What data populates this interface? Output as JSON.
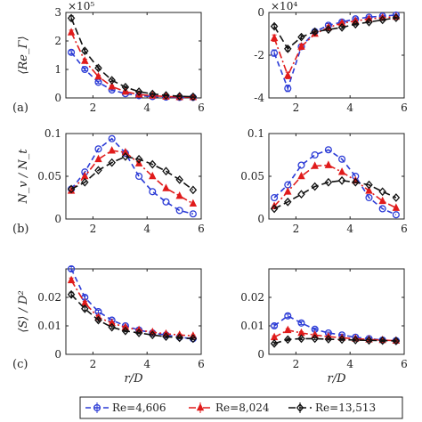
{
  "chart_data": [
    {
      "type": "line",
      "panel": "(a)",
      "column": "left",
      "ylabel": "⟨Re_Γ⟩",
      "xlabel": "",
      "exponent": "×10⁵",
      "xlim": [
        1,
        6
      ],
      "ylim": [
        0,
        3
      ],
      "scale": 100000,
      "xticks": [
        "2",
        "4",
        "6"
      ],
      "yticks": [
        "0",
        "1",
        "2",
        "3"
      ],
      "grid": false,
      "x": [
        1.2,
        1.7,
        2.2,
        2.7,
        3.2,
        3.7,
        4.2,
        4.7,
        5.2,
        5.7
      ],
      "series": [
        {
          "name": "Re=4,606",
          "values": [
            1.6,
            1.0,
            0.55,
            0.28,
            0.15,
            0.08,
            0.05,
            0.03,
            0.02,
            0.02
          ],
          "err": [
            0.06,
            0.05,
            0.04,
            0.03,
            0.02,
            0.02,
            0.02,
            0.02,
            0.02,
            0.02
          ]
        },
        {
          "name": "Re=8,024",
          "values": [
            2.3,
            1.3,
            0.75,
            0.4,
            0.22,
            0.12,
            0.08,
            0.05,
            0.03,
            0.03
          ],
          "err": [
            0.08,
            0.06,
            0.05,
            0.04,
            0.03,
            0.02,
            0.02,
            0.02,
            0.02,
            0.02
          ]
        },
        {
          "name": "Re=13,513",
          "values": [
            2.8,
            1.65,
            1.05,
            0.62,
            0.38,
            0.22,
            0.14,
            0.09,
            0.06,
            0.04
          ],
          "err": [
            0.08,
            0.06,
            0.05,
            0.04,
            0.03,
            0.02,
            0.02,
            0.02,
            0.02,
            0.02
          ]
        }
      ]
    },
    {
      "type": "line",
      "panel": "(a)",
      "column": "right",
      "ylabel": "",
      "xlabel": "",
      "exponent": "×10⁴",
      "xlim": [
        1,
        6
      ],
      "ylim": [
        -4,
        0
      ],
      "scale": 10000,
      "xticks": [
        "2",
        "4",
        "6"
      ],
      "yticks": [
        "-4",
        "-2",
        "0"
      ],
      "grid": false,
      "x": [
        1.2,
        1.7,
        2.2,
        2.7,
        3.2,
        3.7,
        4.2,
        4.7,
        5.2,
        5.7
      ],
      "series": [
        {
          "name": "Re=4,606",
          "values": [
            -1.9,
            -3.55,
            -1.6,
            -0.9,
            -0.6,
            -0.45,
            -0.3,
            -0.22,
            -0.17,
            -0.12
          ],
          "err": [
            0.15,
            0.15,
            0.12,
            0.1,
            0.08,
            0.06,
            0.05,
            0.04,
            0.04,
            0.03
          ]
        },
        {
          "name": "Re=8,024",
          "values": [
            -1.2,
            -2.95,
            -1.6,
            -1.0,
            -0.7,
            -0.5,
            -0.4,
            -0.3,
            -0.25,
            -0.2
          ],
          "err": [
            0.15,
            0.15,
            0.12,
            0.1,
            0.08,
            0.06,
            0.05,
            0.04,
            0.04,
            0.03
          ]
        },
        {
          "name": "Re=13,513",
          "values": [
            -0.65,
            -1.7,
            -1.15,
            -0.9,
            -0.8,
            -0.7,
            -0.55,
            -0.45,
            -0.35,
            -0.25
          ],
          "err": [
            0.08,
            0.1,
            0.08,
            0.07,
            0.06,
            0.05,
            0.04,
            0.04,
            0.03,
            0.03
          ]
        }
      ]
    },
    {
      "type": "line",
      "panel": "(b)",
      "column": "left",
      "ylabel": "N_v / N_t",
      "xlabel": "",
      "xlim": [
        1,
        6
      ],
      "ylim": [
        0,
        0.1
      ],
      "xticks": [
        "2",
        "4",
        "6"
      ],
      "yticks": [
        "0",
        "0.05",
        "0.1"
      ],
      "grid": false,
      "x": [
        1.2,
        1.7,
        2.2,
        2.7,
        3.2,
        3.7,
        4.2,
        4.7,
        5.2,
        5.7
      ],
      "series": [
        {
          "name": "Re=4,606",
          "values": [
            0.035,
            0.055,
            0.082,
            0.094,
            0.077,
            0.05,
            0.032,
            0.02,
            0.01,
            0.006
          ]
        },
        {
          "name": "Re=8,024",
          "values": [
            0.033,
            0.05,
            0.07,
            0.08,
            0.078,
            0.065,
            0.05,
            0.036,
            0.027,
            0.018
          ]
        },
        {
          "name": "Re=13,513",
          "values": [
            0.035,
            0.043,
            0.057,
            0.066,
            0.073,
            0.07,
            0.064,
            0.056,
            0.046,
            0.034
          ]
        }
      ]
    },
    {
      "type": "line",
      "panel": "(b)",
      "column": "right",
      "ylabel": "",
      "xlabel": "",
      "xlim": [
        1,
        6
      ],
      "ylim": [
        0,
        0.1
      ],
      "xticks": [
        "2",
        "4",
        "6"
      ],
      "yticks": [
        "0",
        "0.05",
        "0.1"
      ],
      "grid": false,
      "x": [
        1.2,
        1.7,
        2.2,
        2.7,
        3.2,
        3.7,
        4.2,
        4.7,
        5.2,
        5.7
      ],
      "series": [
        {
          "name": "Re=4,606",
          "values": [
            0.025,
            0.04,
            0.063,
            0.075,
            0.081,
            0.07,
            0.05,
            0.025,
            0.012,
            0.005
          ]
        },
        {
          "name": "Re=8,024",
          "values": [
            0.015,
            0.032,
            0.05,
            0.062,
            0.063,
            0.055,
            0.045,
            0.033,
            0.021,
            0.013
          ]
        },
        {
          "name": "Re=13,513",
          "values": [
            0.012,
            0.02,
            0.029,
            0.038,
            0.043,
            0.045,
            0.043,
            0.04,
            0.032,
            0.025
          ]
        }
      ]
    },
    {
      "type": "line",
      "panel": "(c)",
      "column": "left",
      "ylabel": "⟨S⟩ / D²",
      "xlabel": "r/D",
      "xlim": [
        1,
        6
      ],
      "ylim": [
        0,
        0.03
      ],
      "xticks": [
        "2",
        "4",
        "6"
      ],
      "yticks": [
        "0",
        "0.01",
        "0.02"
      ],
      "grid": false,
      "x": [
        1.2,
        1.7,
        2.2,
        2.7,
        3.2,
        3.7,
        4.2,
        4.7,
        5.2,
        5.7
      ],
      "series": [
        {
          "name": "Re=4,606",
          "values": [
            0.03,
            0.02,
            0.015,
            0.012,
            0.01,
            0.0085,
            0.0075,
            0.0068,
            0.006,
            0.0055
          ],
          "err": [
            0.0008,
            0.0006,
            0.0005,
            0.0004,
            0.0003,
            0.0003,
            0.0003,
            0.0003,
            0.0003,
            0.0003
          ]
        },
        {
          "name": "Re=8,024",
          "values": [
            0.026,
            0.018,
            0.013,
            0.011,
            0.0095,
            0.0085,
            0.0078,
            0.0072,
            0.0068,
            0.0065
          ],
          "err": [
            0.0008,
            0.0006,
            0.0005,
            0.0004,
            0.0003,
            0.0003,
            0.0003,
            0.0003,
            0.0003,
            0.0003
          ]
        },
        {
          "name": "Re=13,513",
          "values": [
            0.021,
            0.016,
            0.012,
            0.0095,
            0.0082,
            0.0075,
            0.0068,
            0.0062,
            0.0058,
            0.0055
          ],
          "err": [
            0.0008,
            0.0006,
            0.0005,
            0.0004,
            0.0003,
            0.0003,
            0.0003,
            0.0003,
            0.0003,
            0.0003
          ]
        }
      ]
    },
    {
      "type": "line",
      "panel": "(c)",
      "column": "right",
      "ylabel": "",
      "xlabel": "r/D",
      "xlim": [
        1,
        6
      ],
      "ylim": [
        0,
        0.03
      ],
      "xticks": [
        "2",
        "4",
        "6"
      ],
      "yticks": [
        "0",
        "0.01",
        "0.02"
      ],
      "grid": false,
      "x": [
        1.2,
        1.7,
        2.2,
        2.7,
        3.2,
        3.7,
        4.2,
        4.7,
        5.2,
        5.7
      ],
      "series": [
        {
          "name": "Re=4,606",
          "values": [
            0.01,
            0.0135,
            0.011,
            0.0088,
            0.0075,
            0.0068,
            0.006,
            0.0055,
            0.005,
            0.0048
          ],
          "err": [
            0.0006,
            0.0006,
            0.0005,
            0.0004,
            0.0003,
            0.0003,
            0.0003,
            0.0003,
            0.0003,
            0.0003
          ]
        },
        {
          "name": "Re=8,024",
          "values": [
            0.006,
            0.0085,
            0.0075,
            0.0068,
            0.0062,
            0.0058,
            0.0055,
            0.0052,
            0.005,
            0.0048
          ],
          "err": [
            0.0005,
            0.0005,
            0.0004,
            0.0004,
            0.0003,
            0.0003,
            0.0003,
            0.0003,
            0.0003,
            0.0003
          ]
        },
        {
          "name": "Re=13,513",
          "values": [
            0.0038,
            0.0052,
            0.0055,
            0.0055,
            0.0053,
            0.0052,
            0.005,
            0.0049,
            0.0048,
            0.0047
          ],
          "err": [
            0.0004,
            0.0004,
            0.0004,
            0.0003,
            0.0003,
            0.0003,
            0.0003,
            0.0003,
            0.0003,
            0.0003
          ]
        }
      ]
    }
  ],
  "legend": {
    "placement": "bottom",
    "entries": [
      "Re=4,606",
      "Re=8,024",
      "Re=13,513"
    ]
  },
  "series_styles": [
    {
      "name": "Re=4,606",
      "color": "#2b3bd6",
      "marker": "circle",
      "dash": "6,4"
    },
    {
      "name": "Re=8,024",
      "color": "#e01b1b",
      "marker": "triangle",
      "dash": "8,3,2,3"
    },
    {
      "name": "Re=13,513",
      "color": "#111111",
      "marker": "diamond",
      "dash": "8,4"
    }
  ]
}
